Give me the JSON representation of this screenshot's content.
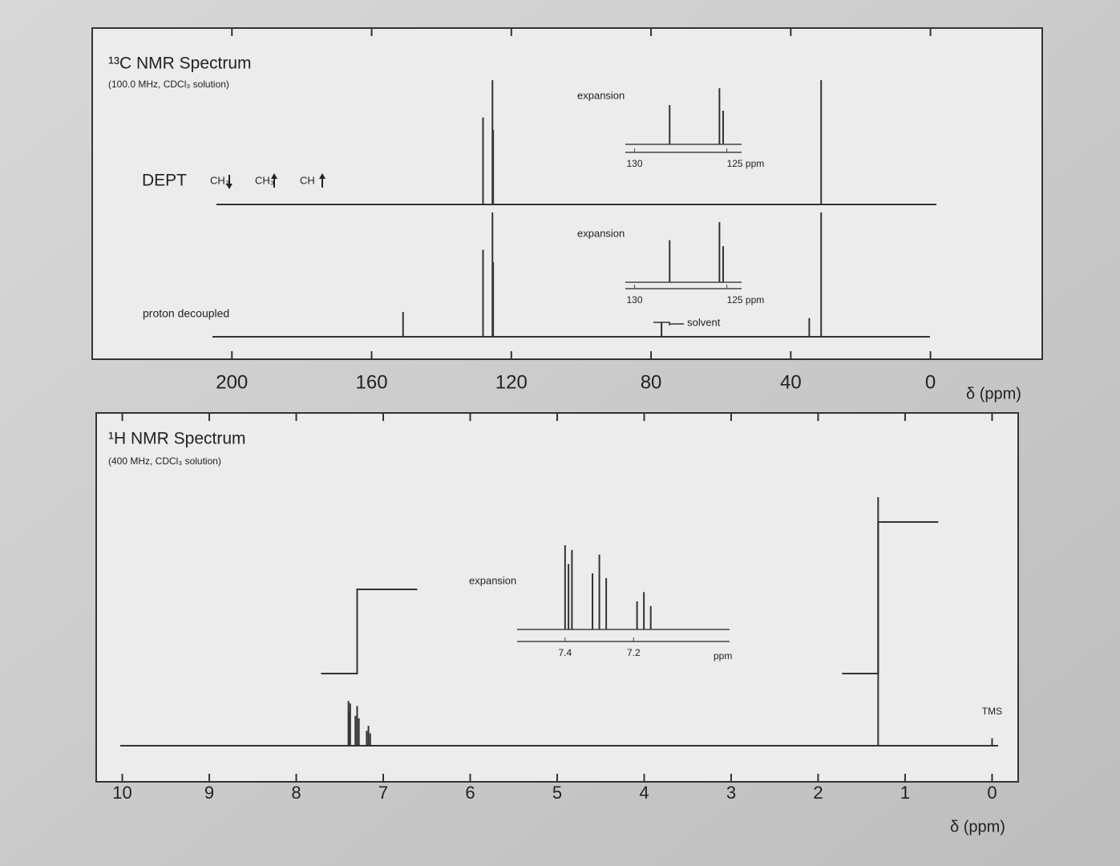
{
  "chart_data": [
    {
      "type": "nmr",
      "title": "¹³C NMR Spectrum",
      "subtitle": "(100.0 MHz, CDCl₃ solution)",
      "x_label": "δ (ppm)",
      "xlim": [
        240,
        -32
      ],
      "xticks": [
        200,
        160,
        120,
        80,
        40,
        0
      ],
      "traces": [
        {
          "name": "DEPT",
          "dept_legend": [
            "CH₂",
            "CH₃",
            "CH"
          ],
          "x": [
            128.1,
            125.4,
            125.2,
            31.3
          ],
          "values": [
            70,
            100,
            60,
            100
          ],
          "inset": {
            "label": "expansion",
            "xlim": [
              130.5,
              124.2
            ],
            "xticks": [
              130,
              {
                "value": 125,
                "label": "125 ppm"
              }
            ]
          }
        },
        {
          "name": "proton decoupled",
          "x": [
            151.0,
            128.1,
            125.4,
            125.2,
            77.0,
            34.7,
            31.3
          ],
          "values": [
            20,
            70,
            100,
            60,
            12,
            15,
            100
          ],
          "annotation": {
            "text": "solvent",
            "x": 77.0
          },
          "inset": {
            "label": "expansion",
            "xlim": [
              130.5,
              124.2
            ],
            "xticks": [
              130,
              {
                "value": 125,
                "label": "125 ppm"
              }
            ]
          }
        }
      ]
    },
    {
      "type": "nmr",
      "title": "¹H NMR Spectrum",
      "subtitle": "(400 MHz, CDCl₃ solution)",
      "x_label": "δ (ppm)",
      "xlim": [
        10.3,
        -0.3
      ],
      "xticks": [
        10,
        9,
        8,
        7,
        6,
        5,
        4,
        3,
        2,
        1,
        0
      ],
      "traces": [
        {
          "x": [
            7.4,
            7.39,
            7.38,
            7.32,
            7.3,
            7.28,
            7.19,
            7.17,
            7.15,
            1.31,
            0
          ],
          "values": [
            18,
            14,
            17,
            12,
            16,
            11,
            6,
            8,
            5,
            100,
            3
          ],
          "annotation": {
            "text": "TMS",
            "x": 0
          },
          "integrals": {
            "x": [
              7.3,
              1.31
            ],
            "values": [
              5,
              9
            ]
          },
          "inset": {
            "label": "expansion",
            "unit": "ppm",
            "xlim": [
              7.54,
              6.92
            ],
            "xticks": [
              7.4,
              7.2
            ]
          }
        }
      ]
    }
  ]
}
